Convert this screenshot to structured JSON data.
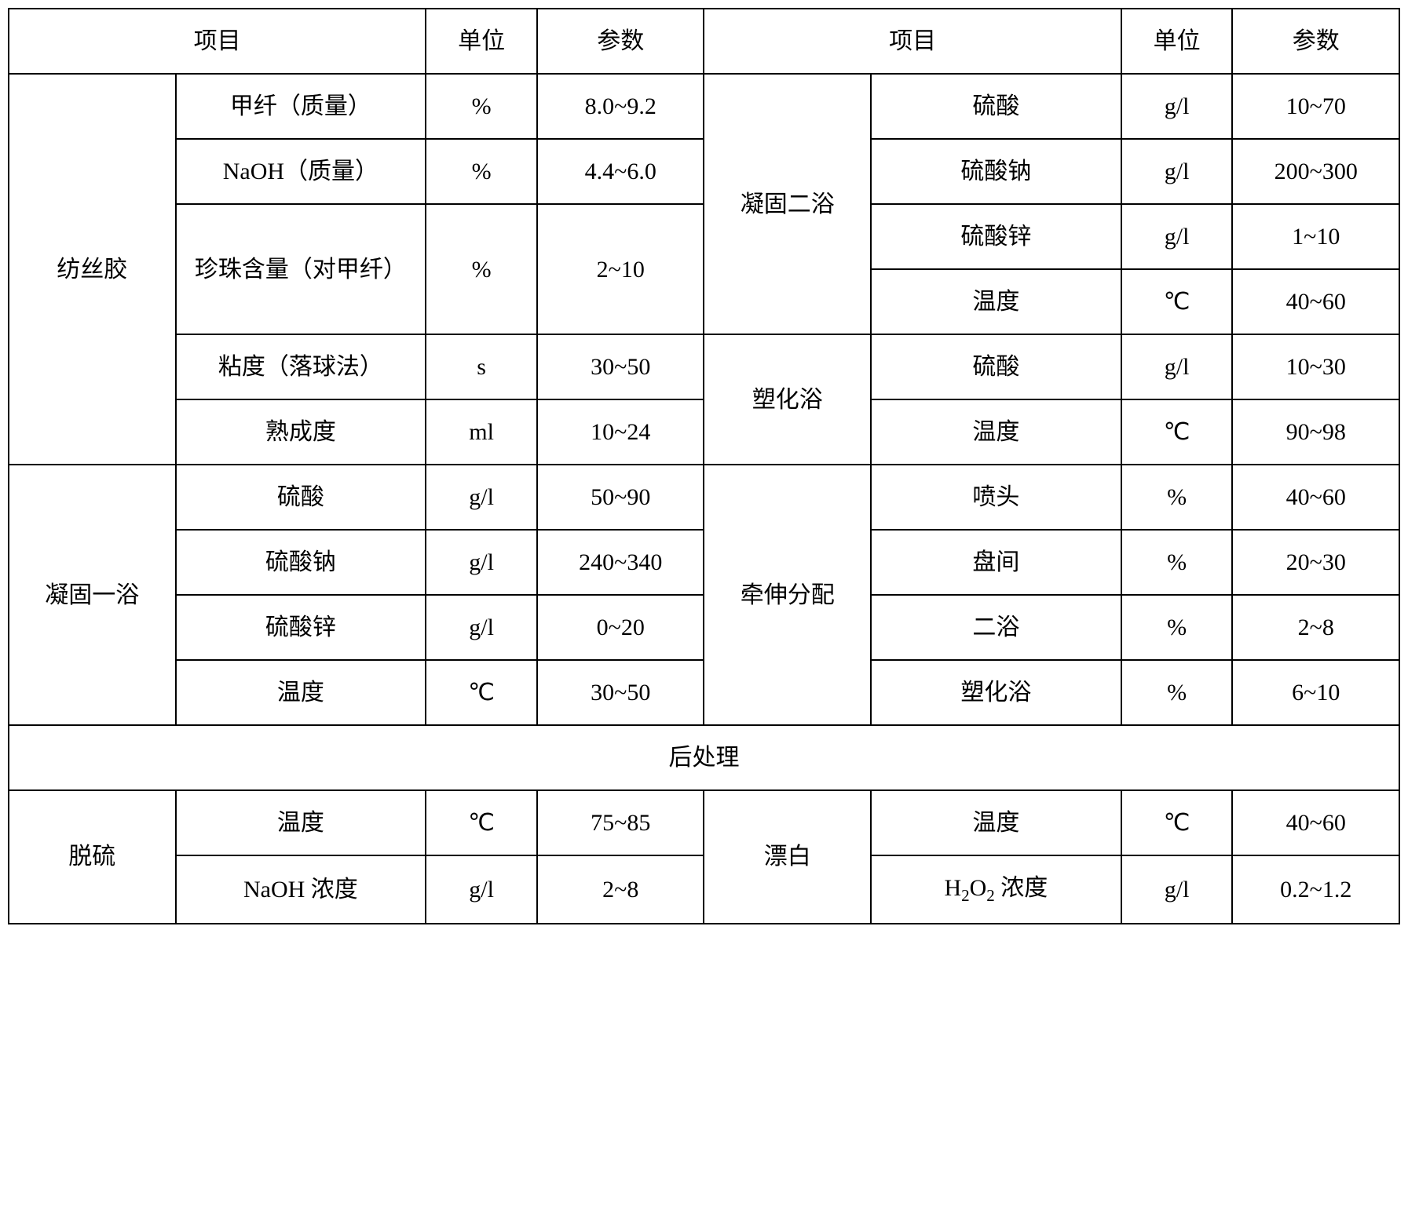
{
  "header": {
    "project1": "项目",
    "unit1": "单位",
    "param1": "参数",
    "project2": "项目",
    "unit2": "单位",
    "param2": "参数"
  },
  "groups": {
    "spinning": "纺丝胶",
    "coag1": "凝固一浴",
    "coag2": "凝固二浴",
    "plastic": "塑化浴",
    "stretch": "牵伸分配",
    "postTreat": "后处理",
    "desulf": "脱硫",
    "bleach": "漂白"
  },
  "rows": {
    "r1": {
      "item1": "甲纤（质量）",
      "unit1": "%",
      "param1": "8.0~9.2",
      "item2": "硫酸",
      "unit2": "g/l",
      "param2": "10~70"
    },
    "r2": {
      "item1": "NaOH（质量）",
      "unit1": "%",
      "param1": "4.4~6.0",
      "item2": "硫酸钠",
      "unit2": "g/l",
      "param2": "200~300"
    },
    "r3": {
      "item1": "珍珠含量（对甲纤）",
      "unit1": "%",
      "param1": "2~10",
      "item2a": "硫酸锌",
      "unit2a": "g/l",
      "param2a": "1~10",
      "item2b": "温度",
      "unit2b": "℃",
      "param2b": "40~60"
    },
    "r4": {
      "item1": "粘度（落球法）",
      "unit1": "s",
      "param1": "30~50",
      "item2": "硫酸",
      "unit2": "g/l",
      "param2": "10~30"
    },
    "r5": {
      "item1": "熟成度",
      "unit1": "ml",
      "param1": "10~24",
      "item2": "温度",
      "unit2": "℃",
      "param2": "90~98"
    },
    "r6": {
      "item1": "硫酸",
      "unit1": "g/l",
      "param1": "50~90",
      "item2": "喷头",
      "unit2": "%",
      "param2": "40~60"
    },
    "r7": {
      "item1": "硫酸钠",
      "unit1": "g/l",
      "param1": "240~340",
      "item2": "盘间",
      "unit2": "%",
      "param2": "20~30"
    },
    "r8": {
      "item1": "硫酸锌",
      "unit1": "g/l",
      "param1": "0~20",
      "item2": "二浴",
      "unit2": "%",
      "param2": "2~8"
    },
    "r9": {
      "item1": "温度",
      "unit1": "℃",
      "param1": "30~50",
      "item2": "塑化浴",
      "unit2": "%",
      "param2": "6~10"
    },
    "r10": {
      "item1": "温度",
      "unit1": "℃",
      "param1": "75~85",
      "item2": "温度",
      "unit2": "℃",
      "param2": "40~60"
    },
    "r11": {
      "item1": "NaOH 浓度",
      "unit1": "g/l",
      "param1": "2~8",
      "item2_prefix": "H",
      "item2_sub1": "2",
      "item2_mid": "O",
      "item2_sub2": "2",
      "item2_suffix": " 浓度",
      "unit2": "g/l",
      "param2": "0.2~1.2"
    }
  },
  "style": {
    "border_color": "#000000",
    "background_color": "#ffffff",
    "font_size": 30,
    "font_family": "SimSun",
    "cell_padding": 18
  }
}
